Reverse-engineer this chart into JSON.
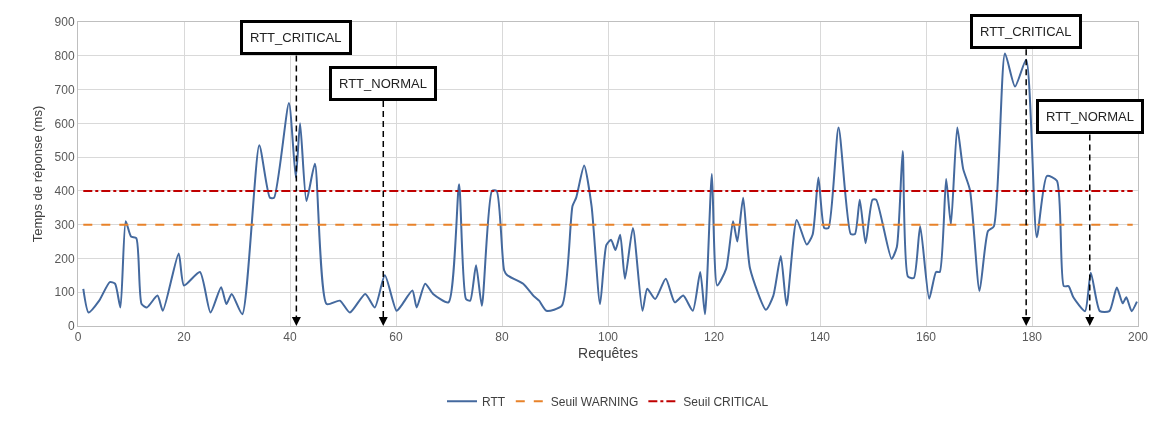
{
  "chart_data": {
    "type": "line",
    "xlabel": "Requêtes",
    "ylabel": "Temps de réponse (ms)",
    "xlim": [
      0,
      200
    ],
    "xticks": [
      0,
      20,
      40,
      60,
      80,
      100,
      120,
      140,
      160,
      180,
      200
    ],
    "ylim": [
      0,
      900
    ],
    "yticks": [
      0,
      100,
      200,
      300,
      400,
      500,
      600,
      700,
      800,
      900
    ],
    "grid": true,
    "legend": "bottom",
    "marker": "none",
    "series": [
      {
        "name": "RTT",
        "color": "#44699e",
        "line_style": "solid",
        "x": [
          1,
          2,
          4,
          6,
          7,
          8,
          9,
          10,
          11,
          12,
          13,
          15,
          16,
          19,
          20,
          23,
          25,
          27,
          28,
          29,
          31,
          34.2,
          36.2,
          37,
          39.8,
          41.1,
          41.9,
          43.1,
          44.7,
          46.9,
          49.4,
          51.3,
          54.2,
          56,
          57.9,
          60.1,
          61,
          63.1,
          63.9,
          65.5,
          67,
          69.9,
          71.9,
          73.2,
          74,
          75.1,
          76.2,
          78.1,
          79,
          80.4,
          81,
          84,
          85.9,
          87,
          88.4,
          91.3,
          93.3,
          94,
          95.5,
          96.9,
          98.5,
          99.7,
          100.6,
          101.4,
          102.3,
          103.2,
          104.7,
          106.5,
          107.4,
          108.9,
          110.9,
          112.6,
          114.2,
          116,
          117.4,
          118.3,
          119.6,
          120.6,
          122.3,
          123.6,
          124.4,
          125.5,
          126.8,
          129.8,
          131.2,
          132.6,
          133.7,
          135.6,
          137.5,
          138.6,
          139.7,
          140.8,
          141.6,
          143.5,
          145.8,
          146.6,
          147.5,
          148.6,
          149.9,
          150.6,
          153.5,
          154.5,
          155.6,
          156.6,
          157.7,
          158.9,
          160.6,
          161.9,
          162.6,
          163.8,
          164.7,
          165.9,
          167,
          168.3,
          170.1,
          171.7,
          172.8,
          174.9,
          176.8,
          178.9,
          180.9,
          182.8,
          184.7,
          186,
          186.9,
          187.8,
          190,
          191.1,
          192.8,
          194.6,
          196,
          197.1,
          197.8,
          198.8,
          199.8
        ],
        "values": [
          110,
          40,
          75,
          130,
          125,
          55,
          310,
          265,
          260,
          65,
          55,
          90,
          45,
          215,
          120,
          160,
          40,
          115,
          65,
          95,
          35,
          535,
          380,
          380,
          660,
          440,
          600,
          370,
          480,
          65,
          75,
          40,
          95,
          55,
          150,
          45,
          60,
          105,
          55,
          125,
          95,
          70,
          420,
          80,
          75,
          180,
          60,
          400,
          400,
          165,
          150,
          125,
          90,
          75,
          45,
          60,
          355,
          380,
          475,
          355,
          65,
          240,
          255,
          225,
          270,
          140,
          290,
          45,
          110,
          80,
          140,
          70,
          90,
          45,
          160,
          35,
          450,
          120,
          170,
          310,
          250,
          380,
          170,
          48,
          90,
          207,
          61,
          314,
          241,
          270,
          440,
          290,
          290,
          588,
          272,
          272,
          374,
          245,
          374,
          374,
          199,
          234,
          518,
          146,
          142,
          295,
          81,
          160,
          160,
          435,
          300,
          588,
          466,
          402,
          104,
          281,
          295,
          807,
          709,
          788,
          263,
          444,
          430,
          118,
          118,
          85,
          44,
          158,
          44,
          44,
          114,
          67,
          85,
          44,
          72
        ]
      },
      {
        "name": "Seuil WARNING",
        "color": "#e8822a",
        "line_style": "dashed",
        "x": [
          1,
          199
        ],
        "values": [
          300,
          300
        ]
      },
      {
        "name": "Seuil CRITICAL",
        "color": "#c00000",
        "line_style": "dashdot",
        "x": [
          1,
          199
        ],
        "values": [
          400,
          400
        ]
      }
    ],
    "ref_lines": [
      {
        "axis": "x",
        "value": 41.2,
        "label": "RTT_CRITICAL",
        "color": "#000000",
        "line_style": "dashed"
      },
      {
        "axis": "x",
        "value": 57.6,
        "label": "RTT_NORMAL",
        "color": "#000000",
        "line_style": "dashed"
      },
      {
        "axis": "x",
        "value": 178.9,
        "label": "RTT_CRITICAL",
        "color": "#000000",
        "line_style": "dashed"
      },
      {
        "axis": "x",
        "value": 190.9,
        "label": "RTT_NORMAL",
        "color": "#000000",
        "line_style": "dashed"
      }
    ]
  }
}
